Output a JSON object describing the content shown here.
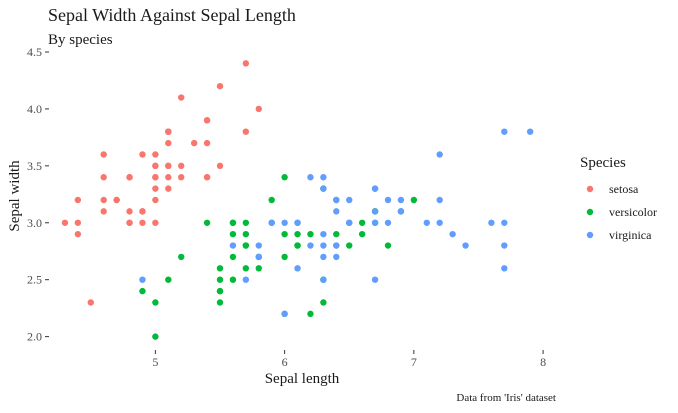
{
  "chart_data": {
    "type": "scatter",
    "title": "Sepal Width Against Sepal Length",
    "subtitle": "By species",
    "xlabel": "Sepal length",
    "ylabel": "Sepal width",
    "caption": "Data from 'Iris' dataset",
    "xlim": [
      4.2,
      8.1
    ],
    "ylim": [
      1.9,
      4.5
    ],
    "x_ticks": [
      "5",
      "6",
      "7",
      "8"
    ],
    "y_ticks": [
      "2.0",
      "2.5",
      "3.0",
      "3.5",
      "4.0",
      "4.5"
    ],
    "grid": false,
    "legend_position": "right",
    "legend_title": "Species",
    "series": [
      {
        "name": "setosa",
        "color": "#F8766D",
        "points": [
          [
            5.1,
            3.5
          ],
          [
            4.9,
            3.0
          ],
          [
            4.7,
            3.2
          ],
          [
            4.6,
            3.1
          ],
          [
            5.0,
            3.6
          ],
          [
            5.4,
            3.9
          ],
          [
            4.6,
            3.4
          ],
          [
            5.0,
            3.4
          ],
          [
            4.4,
            2.9
          ],
          [
            4.9,
            3.1
          ],
          [
            5.4,
            3.7
          ],
          [
            4.8,
            3.4
          ],
          [
            4.8,
            3.0
          ],
          [
            4.3,
            3.0
          ],
          [
            5.8,
            4.0
          ],
          [
            5.7,
            4.4
          ],
          [
            5.4,
            3.9
          ],
          [
            5.1,
            3.5
          ],
          [
            5.7,
            3.8
          ],
          [
            5.1,
            3.8
          ],
          [
            5.4,
            3.4
          ],
          [
            5.1,
            3.7
          ],
          [
            4.6,
            3.6
          ],
          [
            5.1,
            3.3
          ],
          [
            4.8,
            3.4
          ],
          [
            5.0,
            3.0
          ],
          [
            5.0,
            3.4
          ],
          [
            5.2,
            3.5
          ],
          [
            5.2,
            3.4
          ],
          [
            4.7,
            3.2
          ],
          [
            4.8,
            3.1
          ],
          [
            5.4,
            3.4
          ],
          [
            5.2,
            4.1
          ],
          [
            5.5,
            4.2
          ],
          [
            4.9,
            3.1
          ],
          [
            5.0,
            3.2
          ],
          [
            5.5,
            3.5
          ],
          [
            4.9,
            3.6
          ],
          [
            4.4,
            3.0
          ],
          [
            5.1,
            3.4
          ],
          [
            5.0,
            3.5
          ],
          [
            4.5,
            2.3
          ],
          [
            4.4,
            3.2
          ],
          [
            5.0,
            3.5
          ],
          [
            5.1,
            3.8
          ],
          [
            4.8,
            3.0
          ],
          [
            5.1,
            3.8
          ],
          [
            4.6,
            3.2
          ],
          [
            5.3,
            3.7
          ],
          [
            5.0,
            3.3
          ]
        ]
      },
      {
        "name": "versicolor",
        "color": "#00BA38",
        "points": [
          [
            7.0,
            3.2
          ],
          [
            6.4,
            3.2
          ],
          [
            6.9,
            3.1
          ],
          [
            5.5,
            2.3
          ],
          [
            6.5,
            2.8
          ],
          [
            5.7,
            2.8
          ],
          [
            6.3,
            3.3
          ],
          [
            4.9,
            2.4
          ],
          [
            6.6,
            2.9
          ],
          [
            5.2,
            2.7
          ],
          [
            5.0,
            2.0
          ],
          [
            5.9,
            3.0
          ],
          [
            6.0,
            2.2
          ],
          [
            6.1,
            2.9
          ],
          [
            5.6,
            2.9
          ],
          [
            6.7,
            3.1
          ],
          [
            5.6,
            3.0
          ],
          [
            5.8,
            2.7
          ],
          [
            6.2,
            2.2
          ],
          [
            5.6,
            2.5
          ],
          [
            5.9,
            3.2
          ],
          [
            6.1,
            2.8
          ],
          [
            6.3,
            2.5
          ],
          [
            6.1,
            2.8
          ],
          [
            6.4,
            2.9
          ],
          [
            6.6,
            3.0
          ],
          [
            6.8,
            2.8
          ],
          [
            6.7,
            3.0
          ],
          [
            6.0,
            2.9
          ],
          [
            5.7,
            2.6
          ],
          [
            5.5,
            2.4
          ],
          [
            5.5,
            2.4
          ],
          [
            5.8,
            2.7
          ],
          [
            6.0,
            2.7
          ],
          [
            5.4,
            3.0
          ],
          [
            6.0,
            3.4
          ],
          [
            6.7,
            3.1
          ],
          [
            6.3,
            2.3
          ],
          [
            5.6,
            3.0
          ],
          [
            5.5,
            2.5
          ],
          [
            5.5,
            2.6
          ],
          [
            6.1,
            3.0
          ],
          [
            5.8,
            2.6
          ],
          [
            5.0,
            2.3
          ],
          [
            5.6,
            2.7
          ],
          [
            5.7,
            3.0
          ],
          [
            5.7,
            2.9
          ],
          [
            6.2,
            2.9
          ],
          [
            5.1,
            2.5
          ],
          [
            5.7,
            2.8
          ]
        ]
      },
      {
        "name": "virginica",
        "color": "#619CFF",
        "points": [
          [
            6.3,
            3.3
          ],
          [
            5.8,
            2.7
          ],
          [
            7.1,
            3.0
          ],
          [
            6.3,
            2.9
          ],
          [
            6.5,
            3.0
          ],
          [
            7.6,
            3.0
          ],
          [
            4.9,
            2.5
          ],
          [
            7.3,
            2.9
          ],
          [
            6.7,
            2.5
          ],
          [
            7.2,
            3.6
          ],
          [
            6.5,
            3.2
          ],
          [
            6.4,
            2.7
          ],
          [
            6.8,
            3.0
          ],
          [
            5.7,
            2.5
          ],
          [
            5.8,
            2.8
          ],
          [
            6.4,
            3.2
          ],
          [
            6.5,
            3.0
          ],
          [
            7.7,
            3.8
          ],
          [
            7.7,
            2.6
          ],
          [
            6.0,
            2.2
          ],
          [
            6.9,
            3.2
          ],
          [
            5.6,
            2.8
          ],
          [
            7.7,
            2.8
          ],
          [
            6.3,
            2.7
          ],
          [
            6.7,
            3.3
          ],
          [
            7.2,
            3.2
          ],
          [
            6.2,
            2.8
          ],
          [
            6.1,
            3.0
          ],
          [
            6.4,
            2.8
          ],
          [
            7.2,
            3.0
          ],
          [
            7.4,
            2.8
          ],
          [
            7.9,
            3.8
          ],
          [
            6.4,
            2.8
          ],
          [
            6.3,
            2.8
          ],
          [
            6.1,
            2.6
          ],
          [
            7.7,
            3.0
          ],
          [
            6.3,
            3.4
          ],
          [
            6.4,
            3.1
          ],
          [
            6.0,
            3.0
          ],
          [
            6.9,
            3.1
          ],
          [
            6.7,
            3.1
          ],
          [
            6.9,
            3.1
          ],
          [
            5.8,
            2.7
          ],
          [
            6.8,
            3.2
          ],
          [
            6.7,
            3.3
          ],
          [
            6.7,
            3.0
          ],
          [
            6.3,
            2.5
          ],
          [
            6.5,
            3.0
          ],
          [
            6.2,
            3.4
          ],
          [
            5.9,
            3.0
          ]
        ]
      }
    ]
  }
}
